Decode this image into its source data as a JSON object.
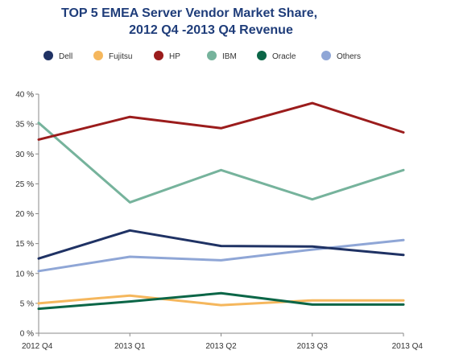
{
  "chart_data": {
    "type": "line",
    "title": [
      "TOP 5 EMEA Server Vendor Market Share,",
      "2012 Q4 -2013 Q4  Revenue"
    ],
    "xlabel": "",
    "ylabel": "",
    "categories": [
      "2012 Q4",
      "2013 Q1",
      "2013 Q2",
      "2013 Q3",
      "2013 Q4"
    ],
    "ylim": [
      0,
      40
    ],
    "yticks": [
      0,
      5,
      10,
      15,
      20,
      25,
      30,
      35,
      40
    ],
    "ytick_labels": [
      "0 %",
      "5 %",
      "10 %",
      "15 %",
      "20 %",
      "25 %",
      "30 %",
      "35 %",
      "40 %"
    ],
    "grid": false,
    "legend_position": "top",
    "series": [
      {
        "name": "Dell",
        "color": "#1f3264",
        "values": [
          12.5,
          17.2,
          14.6,
          14.5,
          13.1
        ]
      },
      {
        "name": "Fujitsu",
        "color": "#f5b75d",
        "values": [
          5.0,
          6.3,
          4.7,
          5.5,
          5.5
        ]
      },
      {
        "name": "HP",
        "color": "#9b1c1c",
        "values": [
          32.4,
          36.2,
          34.3,
          38.5,
          33.6
        ]
      },
      {
        "name": "IBM",
        "color": "#76b39c",
        "values": [
          35.2,
          21.9,
          27.3,
          22.4,
          27.3
        ]
      },
      {
        "name": "Oracle",
        "color": "#0b6647",
        "values": [
          4.1,
          5.3,
          6.7,
          4.8,
          4.8
        ]
      },
      {
        "name": "Others",
        "color": "#8fa6d6",
        "values": [
          10.4,
          12.8,
          12.2,
          14.0,
          15.6
        ]
      }
    ]
  }
}
